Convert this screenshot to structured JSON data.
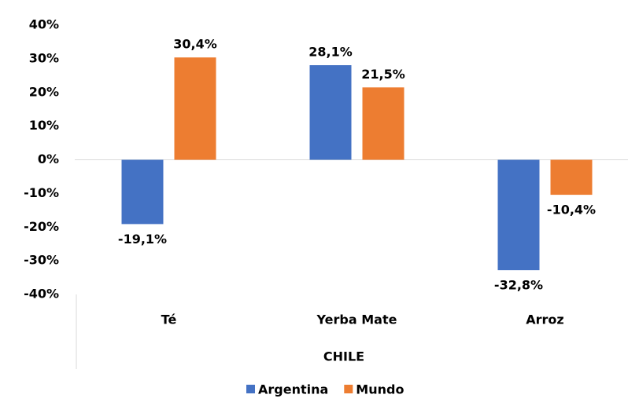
{
  "chart_data": {
    "type": "bar",
    "categories": [
      "Té",
      "Yerba Mate",
      "Arroz"
    ],
    "x_label": "CHILE",
    "series": [
      {
        "name": "Argentina",
        "color": "#4472c4",
        "values": [
          -19.1,
          28.1,
          -32.8
        ],
        "value_labels": [
          "-19,1%",
          "28,1%",
          "-32,8%"
        ]
      },
      {
        "name": "Mundo",
        "color": "#ed7d31",
        "values": [
          30.4,
          21.5,
          -10.4
        ],
        "value_labels": [
          "30,4%",
          "21,5%",
          "-10,4%"
        ]
      }
    ],
    "ylim": [
      -40,
      40
    ],
    "yticks": [
      {
        "value": -40,
        "label": "-40%"
      },
      {
        "value": -30,
        "label": "-30%"
      },
      {
        "value": -20,
        "label": "-20%"
      },
      {
        "value": -10,
        "label": "-10%"
      },
      {
        "value": 0,
        "label": "0%"
      },
      {
        "value": 10,
        "label": "10%"
      },
      {
        "value": 20,
        "label": "20%"
      },
      {
        "value": 30,
        "label": "30%"
      },
      {
        "value": 40,
        "label": "40%"
      }
    ],
    "legend": "bottom"
  }
}
